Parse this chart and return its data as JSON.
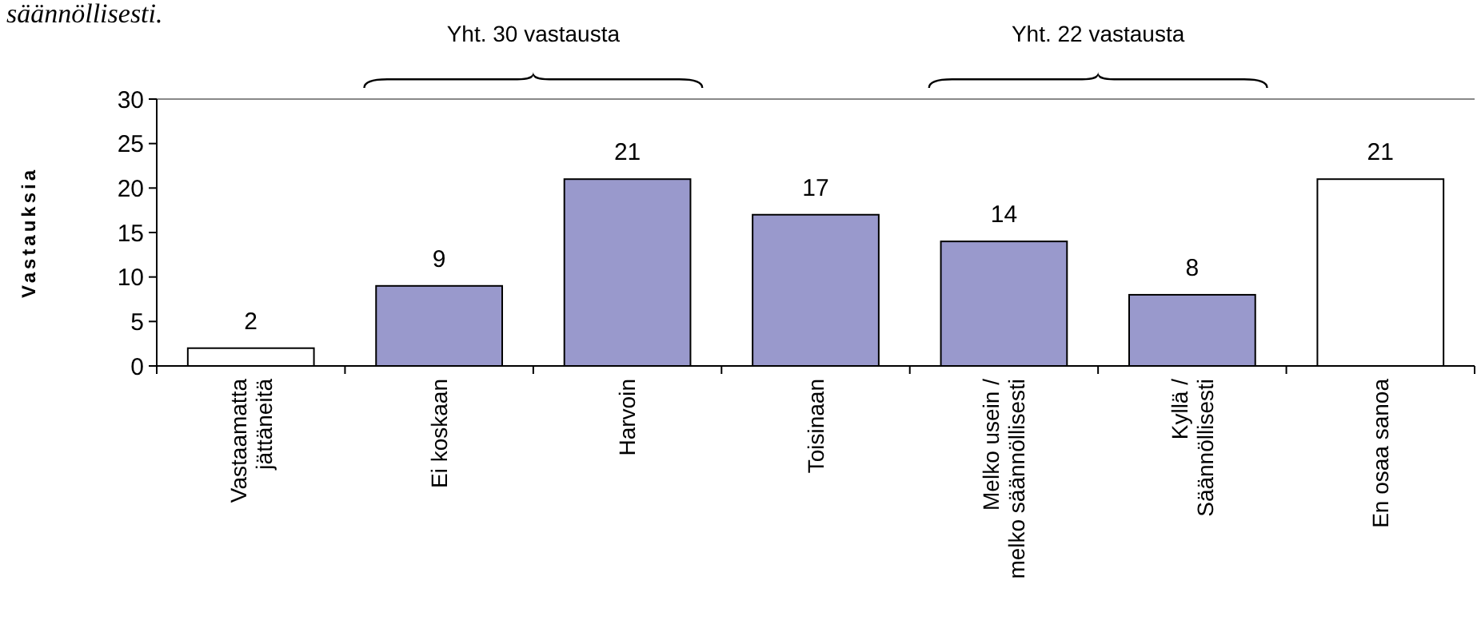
{
  "chart_data": {
    "type": "bar",
    "ylabel": "Vastauksia",
    "categories": [
      "Vastaamatta\njättäneitä",
      "Ei koskaan",
      "Harvoin",
      "Toisinaan",
      "Melko usein /\nmelko säännöllisesti",
      "Kyllä /\nSäännöllisesti",
      "En osaa sanoa"
    ],
    "values": [
      2,
      9,
      21,
      17,
      14,
      8,
      21
    ],
    "colors": [
      "#ffffff",
      "#9999cc",
      "#9999cc",
      "#9999cc",
      "#9999cc",
      "#9999cc",
      "#ffffff"
    ],
    "ylim": [
      0,
      30
    ],
    "yticks": [
      0,
      5,
      10,
      15,
      20,
      25,
      30
    ],
    "grid": false,
    "data_labels": true,
    "annotations": [
      "säännöllisesti.",
      "Yht. 30 vastausta",
      "Yht. 22 vastausta"
    ]
  }
}
